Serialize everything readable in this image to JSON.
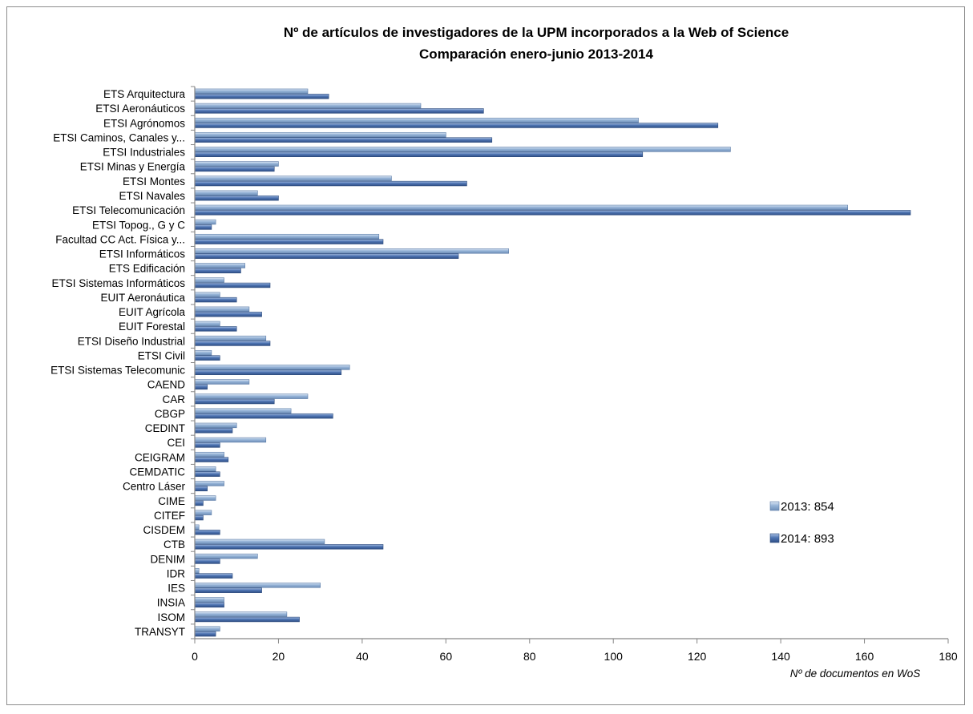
{
  "chart_data": {
    "type": "bar",
    "orientation": "horizontal",
    "title": "Nº de artículos de investigadores de la UPM incorporados a la Web of Science",
    "subtitle": "Comparación enero-junio 2013-2014",
    "xlabel": "Nº de documentos en WoS",
    "ylabel": "",
    "xlim": [
      0,
      180
    ],
    "x_ticks": [
      "0",
      "20",
      "40",
      "60",
      "80",
      "100",
      "120",
      "140",
      "160",
      "180"
    ],
    "grid": false,
    "legend_position": "right",
    "categories": [
      "ETS Arquitectura",
      "ETSI Aeronáuticos",
      "ETSI Agrónomos",
      "ETSI Caminos, Canales y...",
      "ETSI Industriales",
      "ETSI Minas y Energía",
      "ETSI Montes",
      "ETSI Navales",
      "ETSI Telecomunicación",
      "ETSI Topog., G y C",
      "Facultad CC Act. Física y...",
      "ETSI Informáticos",
      "ETS Edificación",
      "ETSI Sistemas Informáticos",
      "EUIT Aeronáutica",
      "EUIT Agrícola",
      "EUIT Forestal",
      "ETSI Diseño Industrial",
      "ETSI Civil",
      "ETSI Sistemas Telecomunic",
      "CAEND",
      "CAR",
      "CBGP",
      "CEDINT",
      "CEI",
      "CEIGRAM",
      "CEMDATIC",
      "Centro Láser",
      "CIME",
      "CITEF",
      "CISDEM",
      "CTB",
      "DENIM",
      "IDR",
      "IES",
      "INSIA",
      "ISOM",
      "TRANSYT"
    ],
    "series": [
      {
        "name": "2013: 854",
        "color": "#95b3d7",
        "values": [
          27,
          54,
          106,
          60,
          128,
          20,
          47,
          15,
          156,
          5,
          44,
          75,
          12,
          7,
          6,
          13,
          6,
          17,
          4,
          37,
          13,
          27,
          23,
          10,
          17,
          7,
          5,
          7,
          5,
          4,
          1,
          31,
          15,
          1,
          30,
          7,
          22,
          6
        ]
      },
      {
        "name": "2014: 893",
        "color": "#4f75b3",
        "values": [
          32,
          69,
          125,
          71,
          107,
          19,
          65,
          20,
          171,
          4,
          45,
          63,
          11,
          18,
          10,
          16,
          10,
          18,
          6,
          35,
          3,
          19,
          33,
          9,
          6,
          8,
          6,
          3,
          2,
          2,
          6,
          45,
          6,
          9,
          16,
          7,
          25,
          5
        ]
      }
    ]
  }
}
